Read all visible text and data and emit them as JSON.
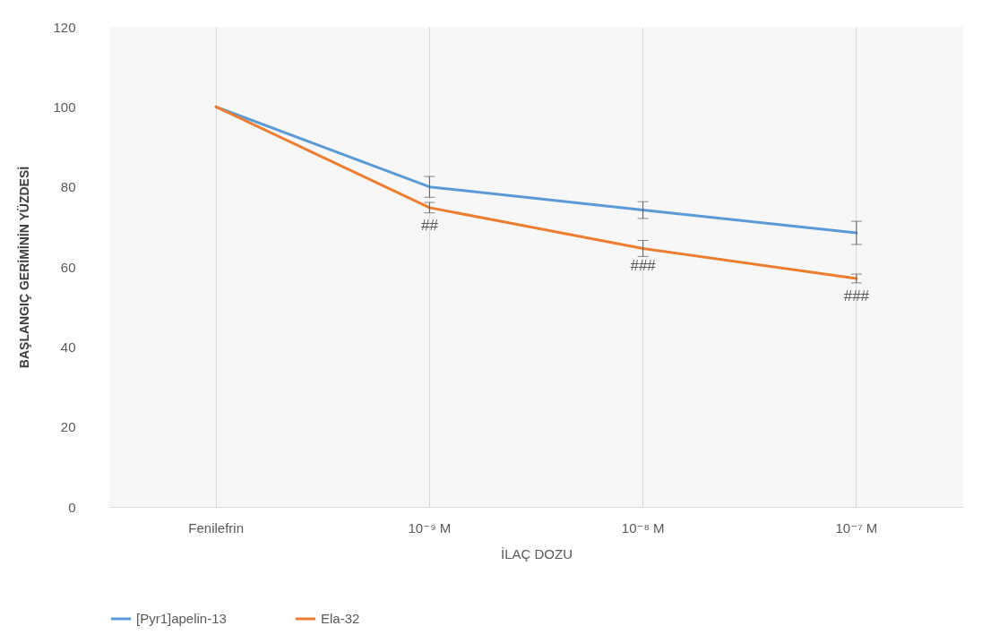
{
  "chart_data": {
    "type": "line",
    "xlabel": "İLAÇ DOZU",
    "ylabel": "BAŞLANGIÇ GERİMİNİN YÜZDESİ",
    "categories": [
      "Fenilefrin",
      "10⁻⁹ M",
      "10⁻⁸ M",
      "10⁻⁷ M"
    ],
    "series": [
      {
        "name": "[Pyr1]apelin-13",
        "color": "#5b9bd5",
        "values": [
          100,
          80,
          74.2,
          68.5
        ],
        "errors": [
          null,
          2.6,
          2.1,
          2.9
        ]
      },
      {
        "name": "Ela-32",
        "color": "#ed7d31",
        "values": [
          100,
          74.8,
          64.6,
          57.1
        ],
        "errors": [
          null,
          1.3,
          2,
          1.1
        ]
      }
    ],
    "annotations": [
      {
        "text": "##",
        "x": "10⁻⁹ M",
        "y": 74.8
      },
      {
        "text": "###",
        "x": "10⁻⁸ M",
        "y": 64.6
      },
      {
        "text": "###",
        "x": "10⁻⁷ M",
        "y": 57.1
      }
    ],
    "ylim": [
      0,
      120
    ],
    "yticks": [
      0,
      20,
      40,
      60,
      80,
      100,
      120
    ],
    "grid": "x",
    "legend": "bottom",
    "marker": "none",
    "line_style": "solid"
  }
}
